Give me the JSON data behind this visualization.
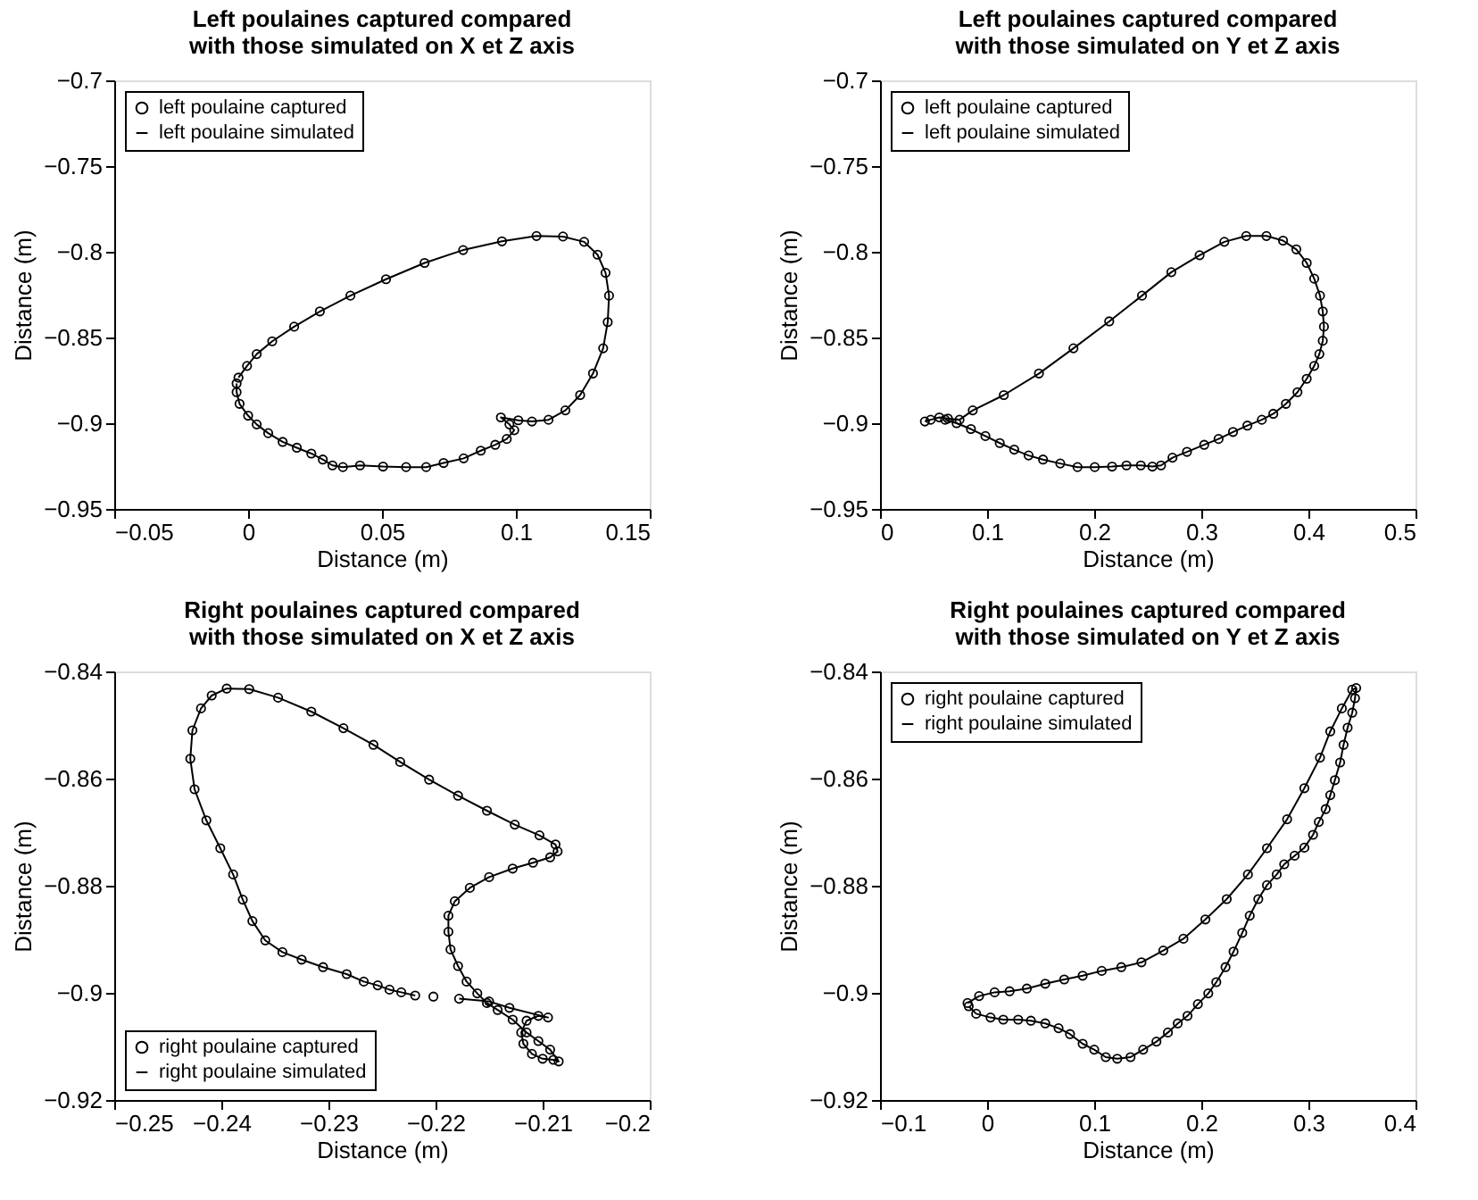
{
  "chart_data": [
    {
      "type": "scatter",
      "title": "Left poulaines captured compared\nwith those simulated on X et Z axis",
      "xlabel": "Distance (m)",
      "ylabel": "Distance (m)",
      "xlim": [
        -0.05,
        0.15
      ],
      "xticks": [
        -0.05,
        0,
        0.05,
        0.1,
        0.15
      ],
      "ylim": [
        -0.95,
        -0.7
      ],
      "yticks": [
        -0.95,
        -0.9,
        -0.85,
        -0.8,
        -0.75,
        -0.7
      ],
      "grid": false,
      "legend": "top left",
      "series": [
        {
          "name": "left poulaine captured",
          "marker": "circle",
          "color": "#000000",
          "x": [
            -0.0036,
            -0.0004,
            0.0032,
            0.009,
            0.0172,
            0.0268,
            0.0382,
            0.0515,
            0.0659,
            0.0803,
            0.0948,
            0.1077,
            0.1176,
            0.1255,
            0.1305,
            0.1335,
            0.1348,
            0.1343,
            0.1326,
            0.1288,
            0.124,
            0.1185,
            0.1122,
            0.106,
            0.1009,
            0.0944,
            0.0976,
            0.0994,
            0.0966,
            0.0923,
            0.0869,
            0.0805,
            0.073,
            0.0665,
            0.059,
            0.0504,
            0.0418,
            0.0354,
            0.0315,
            0.0279,
            0.0236,
            0.0182,
            0.0129,
            0.0075,
            0.0032,
            0.0,
            -0.0032,
            -0.0043,
            -0.0043
          ],
          "values": [
            -0.8734,
            -0.8666,
            -0.8597,
            -0.8522,
            -0.8437,
            -0.8348,
            -0.8256,
            -0.816,
            -0.8065,
            -0.799,
            -0.7939,
            -0.7908,
            -0.7911,
            -0.7942,
            -0.8017,
            -0.8123,
            -0.8256,
            -0.841,
            -0.8563,
            -0.871,
            -0.8836,
            -0.8925,
            -0.898,
            -0.899,
            -0.8983,
            -0.8966,
            -0.9007,
            -0.9041,
            -0.9092,
            -0.9126,
            -0.916,
            -0.9205,
            -0.9232,
            -0.9256,
            -0.9256,
            -0.9253,
            -0.9246,
            -0.9256,
            -0.9246,
            -0.9212,
            -0.9177,
            -0.9143,
            -0.9109,
            -0.9058,
            -0.9007,
            -0.8956,
            -0.8887,
            -0.8819,
            -0.8768
          ]
        },
        {
          "name": "left poulaine simulated",
          "type": "line",
          "line_style": "solid",
          "color": "#000000",
          "x": [
            -0.0036,
            -0.0004,
            0.0032,
            0.009,
            0.0172,
            0.0268,
            0.0382,
            0.0515,
            0.0659,
            0.0803,
            0.0948,
            0.1077,
            0.1176,
            0.1255,
            0.1305,
            0.1335,
            0.1348,
            0.1343,
            0.1326,
            0.1288,
            0.124,
            0.1185,
            0.1122,
            0.106,
            0.1009,
            0.0944,
            0.0976,
            0.0994,
            0.0966,
            0.0923,
            0.0869,
            0.0805,
            0.073,
            0.0665,
            0.059,
            0.0504,
            0.0418,
            0.0354,
            0.0315,
            0.0279,
            0.0236,
            0.0182,
            0.0129,
            0.0075,
            0.0032,
            0.0,
            -0.0032,
            -0.0043,
            -0.0043
          ],
          "values": [
            -0.8734,
            -0.8666,
            -0.8597,
            -0.8522,
            -0.8437,
            -0.8348,
            -0.8256,
            -0.816,
            -0.8065,
            -0.799,
            -0.7939,
            -0.7908,
            -0.7911,
            -0.7942,
            -0.8017,
            -0.8123,
            -0.8256,
            -0.841,
            -0.8563,
            -0.871,
            -0.8836,
            -0.8925,
            -0.898,
            -0.899,
            -0.8983,
            -0.8966,
            -0.9007,
            -0.9041,
            -0.9092,
            -0.9126,
            -0.916,
            -0.9205,
            -0.9232,
            -0.9256,
            -0.9256,
            -0.9253,
            -0.9246,
            -0.9256,
            -0.9246,
            -0.9212,
            -0.9177,
            -0.9143,
            -0.9109,
            -0.9058,
            -0.9007,
            -0.8956,
            -0.8887,
            -0.8819,
            -0.8768
          ]
        }
      ]
    },
    {
      "type": "scatter",
      "title": "Left poulaines captured compared\nwith those simulated on Y et Z axis",
      "xlabel": "Distance (m)",
      "ylabel": "Distance (m)",
      "xlim": [
        0,
        0.5
      ],
      "xticks": [
        0,
        0.1,
        0.2,
        0.3,
        0.4,
        0.5
      ],
      "ylim": [
        -0.95,
        -0.7
      ],
      "yticks": [
        -0.95,
        -0.9,
        -0.85,
        -0.8,
        -0.75,
        -0.7
      ],
      "grid": false,
      "legend": "top left",
      "series": [
        {
          "name": "left poulaine captured",
          "marker": "circle",
          "color": "#000000",
          "x": [
            0.0419,
            0.0473,
            0.0554,
            0.0634,
            0.0742,
            0.0866,
            0.1156,
            0.1484,
            0.1806,
            0.214,
            0.2446,
            0.272,
            0.2984,
            0.3215,
            0.3419,
            0.3608,
            0.3763,
            0.3887,
            0.3984,
            0.4054,
            0.4108,
            0.4134,
            0.4145,
            0.4134,
            0.4102,
            0.4054,
            0.3984,
            0.3898,
            0.379,
            0.3672,
            0.3565,
            0.343,
            0.3296,
            0.3161,
            0.3027,
            0.2866,
            0.2731,
            0.2624,
            0.2543,
            0.2435,
            0.2301,
            0.2167,
            0.2005,
            0.1844,
            0.1683,
            0.1522,
            0.1387,
            0.1253,
            0.1118,
            0.0984,
            0.0849,
            0.0715,
            0.0608
          ],
          "values": [
            -0.899,
            -0.898,
            -0.8966,
            -0.8973,
            -0.898,
            -0.8925,
            -0.8836,
            -0.871,
            -0.8563,
            -0.8406,
            -0.8256,
            -0.8119,
            -0.802,
            -0.7942,
            -0.7908,
            -0.7908,
            -0.7935,
            -0.7986,
            -0.8065,
            -0.8157,
            -0.8256,
            -0.8348,
            -0.8437,
            -0.8519,
            -0.8597,
            -0.8666,
            -0.8741,
            -0.8819,
            -0.8887,
            -0.8945,
            -0.898,
            -0.9014,
            -0.9051,
            -0.9092,
            -0.9126,
            -0.9167,
            -0.9201,
            -0.9246,
            -0.9253,
            -0.9246,
            -0.9246,
            -0.9253,
            -0.9256,
            -0.9256,
            -0.9235,
            -0.9212,
            -0.9188,
            -0.9154,
            -0.9116,
            -0.9075,
            -0.9034,
            -0.9,
            -0.898
          ]
        },
        {
          "name": "left poulaine simulated",
          "type": "line",
          "line_style": "solid",
          "color": "#000000",
          "x": [
            0.0419,
            0.0473,
            0.0554,
            0.0634,
            0.0742,
            0.0866,
            0.1156,
            0.1484,
            0.1806,
            0.214,
            0.2446,
            0.272,
            0.2984,
            0.3215,
            0.3419,
            0.3608,
            0.3763,
            0.3887,
            0.3984,
            0.4054,
            0.4108,
            0.4134,
            0.4145,
            0.4134,
            0.4102,
            0.4054,
            0.3984,
            0.3898,
            0.379,
            0.3672,
            0.3565,
            0.343,
            0.3296,
            0.3161,
            0.3027,
            0.2866,
            0.2731,
            0.2624,
            0.2543,
            0.2435,
            0.2301,
            0.2167,
            0.2005,
            0.1844,
            0.1683,
            0.1522,
            0.1387,
            0.1253,
            0.1118,
            0.0984,
            0.0849,
            0.0715,
            0.0608
          ],
          "values": [
            -0.899,
            -0.898,
            -0.8966,
            -0.8973,
            -0.898,
            -0.8925,
            -0.8836,
            -0.871,
            -0.8563,
            -0.8406,
            -0.8256,
            -0.8119,
            -0.802,
            -0.7942,
            -0.7908,
            -0.7908,
            -0.7935,
            -0.7986,
            -0.8065,
            -0.8157,
            -0.8256,
            -0.8348,
            -0.8437,
            -0.8519,
            -0.8597,
            -0.8666,
            -0.8741,
            -0.8819,
            -0.8887,
            -0.8945,
            -0.898,
            -0.9014,
            -0.9051,
            -0.9092,
            -0.9126,
            -0.9167,
            -0.9201,
            -0.9246,
            -0.9253,
            -0.9246,
            -0.9246,
            -0.9253,
            -0.9256,
            -0.9256,
            -0.9235,
            -0.9212,
            -0.9188,
            -0.9154,
            -0.9116,
            -0.9075,
            -0.9034,
            -0.9,
            -0.898
          ]
        }
      ]
    },
    {
      "type": "scatter",
      "title": "Right poulaines captured compared\nwith those simulated on X et Z axis",
      "xlabel": "Distance (m)",
      "ylabel": "Distance (m)",
      "xlim": [
        -0.25,
        -0.2
      ],
      "xticks": [
        -0.25,
        -0.24,
        -0.23,
        -0.22,
        -0.21,
        -0.2
      ],
      "ylim": [
        -0.92,
        -0.84
      ],
      "yticks": [
        -0.92,
        -0.9,
        -0.88,
        -0.86,
        -0.84
      ],
      "grid": false,
      "legend": "bottom left",
      "series": [
        {
          "name": "right poulaine captured",
          "marker": "circle",
          "color": "#000000",
          "x": [
            -0.2219,
            -0.2232,
            -0.2243,
            -0.2254,
            -0.2267,
            -0.2283,
            -0.2305,
            -0.2325,
            -0.2343,
            -0.2359,
            -0.2371,
            -0.238,
            -0.2389,
            -0.2401,
            -0.2414,
            -0.2425,
            -0.2429,
            -0.2427,
            -0.2419,
            -0.2409,
            -0.2395,
            -0.2374,
            -0.2347,
            -0.2316,
            -0.2286,
            -0.2258,
            -0.2233,
            -0.2206,
            -0.2179,
            -0.2152,
            -0.2126,
            -0.2103,
            -0.2088,
            -0.2086,
            -0.2093,
            -0.2109,
            -0.2128,
            -0.215,
            -0.2168,
            -0.2182,
            -0.2188,
            -0.2188,
            -0.2186,
            -0.2179,
            -0.2171,
            -0.2161,
            -0.2152,
            -0.2142,
            -0.2128,
            -0.2115,
            -0.2104,
            -0.2093,
            -0.2085,
            -0.209,
            -0.21,
            -0.211,
            -0.2118,
            -0.212,
            -0.2115,
            -0.2104,
            -0.2095,
            -0.2131,
            -0.215,
            -0.2178,
            -0.2202
          ],
          "values": [
            -0.9005,
            -0.8999,
            -0.8994,
            -0.8986,
            -0.8979,
            -0.8965,
            -0.8952,
            -0.8938,
            -0.8924,
            -0.8902,
            -0.8866,
            -0.8826,
            -0.8779,
            -0.873,
            -0.8678,
            -0.862,
            -0.8563,
            -0.851,
            -0.8469,
            -0.8445,
            -0.8432,
            -0.8433,
            -0.8449,
            -0.8475,
            -0.8506,
            -0.8537,
            -0.8569,
            -0.8602,
            -0.8632,
            -0.866,
            -0.8686,
            -0.8706,
            -0.8723,
            -0.8736,
            -0.8747,
            -0.8757,
            -0.8768,
            -0.8784,
            -0.8804,
            -0.8829,
            -0.8856,
            -0.8886,
            -0.8919,
            -0.895,
            -0.8979,
            -0.9001,
            -0.9019,
            -0.9032,
            -0.905,
            -0.9074,
            -0.909,
            -0.9106,
            -0.9128,
            -0.9125,
            -0.9123,
            -0.9114,
            -0.9095,
            -0.9074,
            -0.9052,
            -0.9043,
            -0.9046,
            -0.9028,
            -0.9016,
            -0.9011,
            -0.9007
          ]
        },
        {
          "name": "right poulaine simulated",
          "type": "line",
          "line_style": "solid",
          "color": "#000000",
          "x": [
            -0.2219,
            -0.2232,
            -0.2243,
            -0.2254,
            -0.2267,
            -0.2283,
            -0.2305,
            -0.2325,
            -0.2343,
            -0.2359,
            -0.2371,
            -0.238,
            -0.2389,
            -0.2401,
            -0.2414,
            -0.2425,
            -0.2429,
            -0.2427,
            -0.2419,
            -0.2409,
            -0.2395,
            -0.2374,
            -0.2347,
            -0.2316,
            -0.2286,
            -0.2258,
            -0.2233,
            -0.2206,
            -0.2179,
            -0.2152,
            -0.2126,
            -0.2103,
            -0.2088,
            -0.2086,
            -0.2093,
            -0.2109,
            -0.2128,
            -0.215,
            -0.2168,
            -0.2182,
            -0.2188,
            -0.2188,
            -0.2186,
            -0.2179,
            -0.2171,
            -0.2161,
            -0.2152,
            -0.2142,
            -0.2128,
            -0.2115,
            -0.2104,
            -0.2093,
            -0.2085,
            -0.209,
            -0.21,
            -0.211,
            -0.2118,
            -0.212,
            -0.2115,
            -0.2104,
            -0.2095,
            -0.2131,
            -0.215,
            -0.2178
          ],
          "values": [
            -0.9005,
            -0.8999,
            -0.8994,
            -0.8986,
            -0.8979,
            -0.8965,
            -0.8952,
            -0.8938,
            -0.8924,
            -0.8902,
            -0.8866,
            -0.8826,
            -0.8779,
            -0.873,
            -0.8678,
            -0.862,
            -0.8563,
            -0.851,
            -0.8469,
            -0.8445,
            -0.8432,
            -0.8433,
            -0.8449,
            -0.8475,
            -0.8506,
            -0.8537,
            -0.8569,
            -0.8602,
            -0.8632,
            -0.866,
            -0.8686,
            -0.8706,
            -0.8723,
            -0.8736,
            -0.8747,
            -0.8757,
            -0.8768,
            -0.8784,
            -0.8804,
            -0.8829,
            -0.8856,
            -0.8886,
            -0.8919,
            -0.895,
            -0.8979,
            -0.9001,
            -0.9019,
            -0.9032,
            -0.905,
            -0.9074,
            -0.909,
            -0.9106,
            -0.9128,
            -0.9125,
            -0.9123,
            -0.9114,
            -0.9095,
            -0.9074,
            -0.9052,
            -0.9043,
            -0.9046,
            -0.9028,
            -0.9016,
            -0.9011
          ]
        }
      ]
    },
    {
      "type": "scatter",
      "title": "Right poulaines captured compared\nwith those simulated on Y et Z axis",
      "xlabel": "Distance (m)",
      "ylabel": "Distance (m)",
      "xlim": [
        -0.1,
        0.4
      ],
      "xticks": [
        -0.1,
        0,
        0.1,
        0.2,
        0.3,
        0.4
      ],
      "ylim": [
        -0.92,
        -0.84
      ],
      "yticks": [
        -0.92,
        -0.9,
        -0.88,
        -0.86,
        -0.84
      ],
      "grid": false,
      "legend": "top left",
      "series": [
        {
          "name": "right poulaine captured",
          "marker": "circle",
          "color": "#000000",
          "x": [
            -0.0183,
            -0.0075,
            0.007,
            0.021,
            0.0371,
            0.0543,
            0.072,
            0.0892,
            0.107,
            0.1253,
            0.1441,
            0.1645,
            0.1833,
            0.2038,
            0.2237,
            0.2435,
            0.2613,
            0.2801,
            0.2962,
            0.3108,
            0.3204,
            0.3312,
            0.3409,
            0.3446,
            0.3435,
            0.3409,
            0.3366,
            0.3328,
            0.3296,
            0.3247,
            0.3204,
            0.3161,
            0.3097,
            0.3043,
            0.2962,
            0.2871,
            0.2774,
            0.2704,
            0.2613,
            0.2532,
            0.2452,
            0.2382,
            0.2301,
            0.2226,
            0.214,
            0.2065,
            0.1968,
            0.1871,
            0.178,
            0.1688,
            0.1581,
            0.1457,
            0.1339,
            0.1215,
            0.1108,
            0.1,
            0.0892,
            0.0774,
            0.0667,
            0.0543,
            0.0409,
            0.029,
            0.0151,
            0.0032,
            -0.0102,
            -0.0172
          ],
          "values": [
            -0.9019,
            -0.9006,
            -0.8999,
            -0.8997,
            -0.8992,
            -0.8983,
            -0.8975,
            -0.8968,
            -0.8959,
            -0.8952,
            -0.8943,
            -0.8921,
            -0.8899,
            -0.8863,
            -0.8825,
            -0.8779,
            -0.873,
            -0.8676,
            -0.8618,
            -0.8561,
            -0.8512,
            -0.8469,
            -0.8434,
            -0.8431,
            -0.845,
            -0.8477,
            -0.8505,
            -0.8537,
            -0.857,
            -0.8603,
            -0.8631,
            -0.8657,
            -0.8681,
            -0.8705,
            -0.8729,
            -0.8744,
            -0.876,
            -0.8779,
            -0.8799,
            -0.8825,
            -0.8856,
            -0.8888,
            -0.8923,
            -0.8952,
            -0.898,
            -0.9001,
            -0.9021,
            -0.9043,
            -0.9057,
            -0.9074,
            -0.9091,
            -0.9106,
            -0.912,
            -0.9123,
            -0.912,
            -0.9106,
            -0.9095,
            -0.9077,
            -0.9066,
            -0.9057,
            -0.9052,
            -0.905,
            -0.905,
            -0.9046,
            -0.9039,
            -0.9025
          ]
        },
        {
          "name": "right poulaine simulated",
          "type": "line",
          "line_style": "solid",
          "color": "#000000",
          "x": [
            -0.0183,
            -0.0075,
            0.007,
            0.021,
            0.0371,
            0.0543,
            0.072,
            0.0892,
            0.107,
            0.1253,
            0.1441,
            0.1645,
            0.1833,
            0.2038,
            0.2237,
            0.2435,
            0.2613,
            0.2801,
            0.2962,
            0.3108,
            0.3204,
            0.3312,
            0.3409,
            0.3446,
            0.3435,
            0.3409,
            0.3366,
            0.3328,
            0.3296,
            0.3247,
            0.3204,
            0.3161,
            0.3097,
            0.3043,
            0.2962,
            0.2871,
            0.2774,
            0.2704,
            0.2613,
            0.2532,
            0.2452,
            0.2382,
            0.2301,
            0.2226,
            0.214,
            0.2065,
            0.1968,
            0.1871,
            0.178,
            0.1688,
            0.1581,
            0.1457,
            0.1339,
            0.1215,
            0.1108,
            0.1,
            0.0892,
            0.0774,
            0.0667,
            0.0543,
            0.0409,
            0.029,
            0.0151,
            0.0032,
            -0.0102,
            -0.0172
          ],
          "values": [
            -0.9019,
            -0.9006,
            -0.8999,
            -0.8997,
            -0.8992,
            -0.8983,
            -0.8975,
            -0.8968,
            -0.8959,
            -0.8952,
            -0.8943,
            -0.8921,
            -0.8899,
            -0.8863,
            -0.8825,
            -0.8779,
            -0.873,
            -0.8676,
            -0.8618,
            -0.8561,
            -0.8512,
            -0.8469,
            -0.8434,
            -0.8431,
            -0.845,
            -0.8477,
            -0.8505,
            -0.8537,
            -0.857,
            -0.8603,
            -0.8631,
            -0.8657,
            -0.8681,
            -0.8705,
            -0.8729,
            -0.8744,
            -0.876,
            -0.8779,
            -0.8799,
            -0.8825,
            -0.8856,
            -0.8888,
            -0.8923,
            -0.8952,
            -0.898,
            -0.9001,
            -0.9021,
            -0.9043,
            -0.9057,
            -0.9074,
            -0.9091,
            -0.9106,
            -0.912,
            -0.9123,
            -0.912,
            -0.9106,
            -0.9095,
            -0.9077,
            -0.9066,
            -0.9057,
            -0.9052,
            -0.905,
            -0.905,
            -0.9046,
            -0.9039,
            -0.9025
          ]
        }
      ]
    }
  ]
}
